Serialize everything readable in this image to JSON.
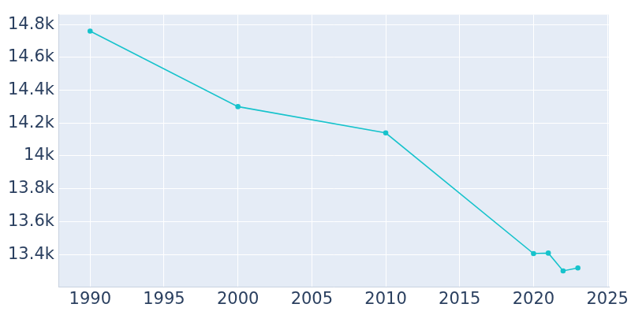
{
  "chart_data": {
    "type": "line",
    "x": [
      1990,
      2000,
      2010,
      2020,
      2021,
      2022,
      2023
    ],
    "values": [
      14760,
      14300,
      14140,
      13405,
      13408,
      13300,
      13318
    ],
    "color": "#17c3cc",
    "marker": "circle",
    "xlim": [
      1987.9,
      2025.1
    ],
    "xticks": [
      1990,
      1995,
      2000,
      2005,
      2010,
      2015,
      2020,
      2025
    ],
    "ylim": [
      13200,
      14860
    ],
    "yticks": [
      {
        "value": 13400,
        "label": "13.4k"
      },
      {
        "value": 13600,
        "label": "13.6k"
      },
      {
        "value": 13800,
        "label": "13.8k"
      },
      {
        "value": 14000,
        "label": "14k"
      },
      {
        "value": 14200,
        "label": "14.2k"
      },
      {
        "value": 14400,
        "label": "14.4k"
      },
      {
        "value": 14600,
        "label": "14.6k"
      },
      {
        "value": 14800,
        "label": "14.8k"
      }
    ],
    "grid": true
  }
}
